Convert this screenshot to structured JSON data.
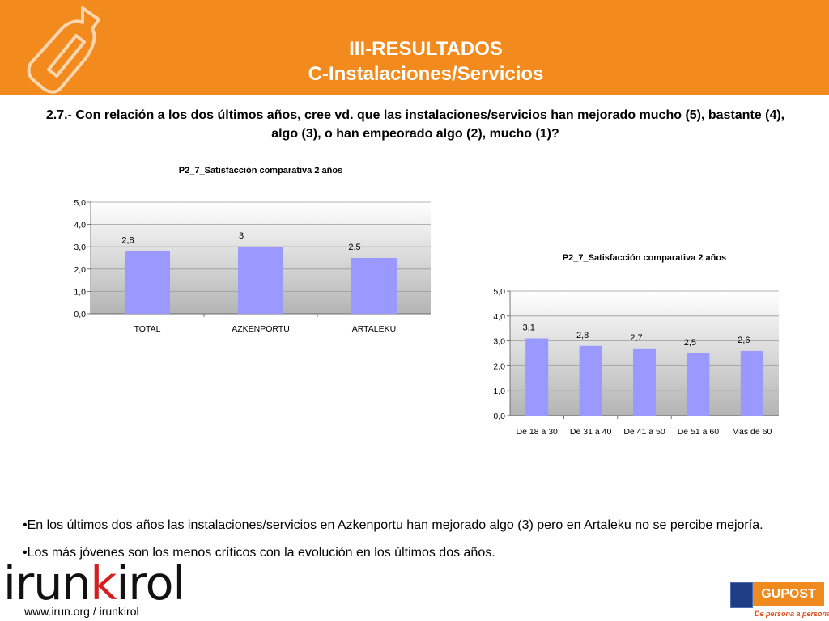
{
  "header": {
    "title_line1": "III-RESULTADOS",
    "title_line2": "C-Instalaciones/Servicios",
    "logo_icon": "bottle-message-icon",
    "color": "#f28a1e"
  },
  "question": {
    "line1": "2.7.- Con relación a los dos últimos años, cree vd. que las instalaciones/servicios han mejorado mucho (5), bastante (4),",
    "line2": "algo (3),  o han empeorado algo (2), mucho (1)?"
  },
  "chart_data": [
    {
      "type": "bar",
      "title": "P2_7_Satisfacción comparativa 2 años",
      "categories": [
        "TOTAL",
        "AZKENPORTU",
        "ARTALEKU"
      ],
      "values": [
        2.8,
        3,
        2.5
      ],
      "value_labels": [
        "2,8",
        "3",
        "2,5"
      ],
      "ylim": [
        0,
        5
      ],
      "yticks": [
        "0,0",
        "1,0",
        "2,0",
        "3,0",
        "4,0",
        "5,0"
      ],
      "xlabel": "",
      "ylabel": "",
      "grid": true,
      "bar_color": "#9999ff"
    },
    {
      "type": "bar",
      "title": "P2_7_Satisfacción comparativa 2 años",
      "categories": [
        "De 18 a 30",
        "De 31 a 40",
        "De 41 a 50",
        "De 51 a 60",
        "Más de 60"
      ],
      "values": [
        3.1,
        2.8,
        2.7,
        2.5,
        2.6
      ],
      "value_labels": [
        "3,1",
        "2,8",
        "2,7",
        "2,5",
        "2,6"
      ],
      "ylim": [
        0,
        5
      ],
      "yticks": [
        "0,0",
        "1,0",
        "2,0",
        "3,0",
        "4,0",
        "5,0"
      ],
      "xlabel": "",
      "ylabel": "",
      "grid": true,
      "bar_color": "#9999ff"
    }
  ],
  "notes": [
    "•En los últimos dos años las instalaciones/servicios en Azkenportu han mejorado algo (3) pero en Artaleku no se percibe mejoría.",
    "•Los más jóvenes son los menos críticos con la evolución en los últimos dos años."
  ],
  "footer": {
    "brand_prefix": "irun",
    "brand_k": "k",
    "brand_suffix": "irol",
    "url": "www.irun.org / irunkirol",
    "gupost_name": "GUPOST",
    "gupost_tagline": "De persona a persona",
    "accent_red": "#d41f1f"
  }
}
